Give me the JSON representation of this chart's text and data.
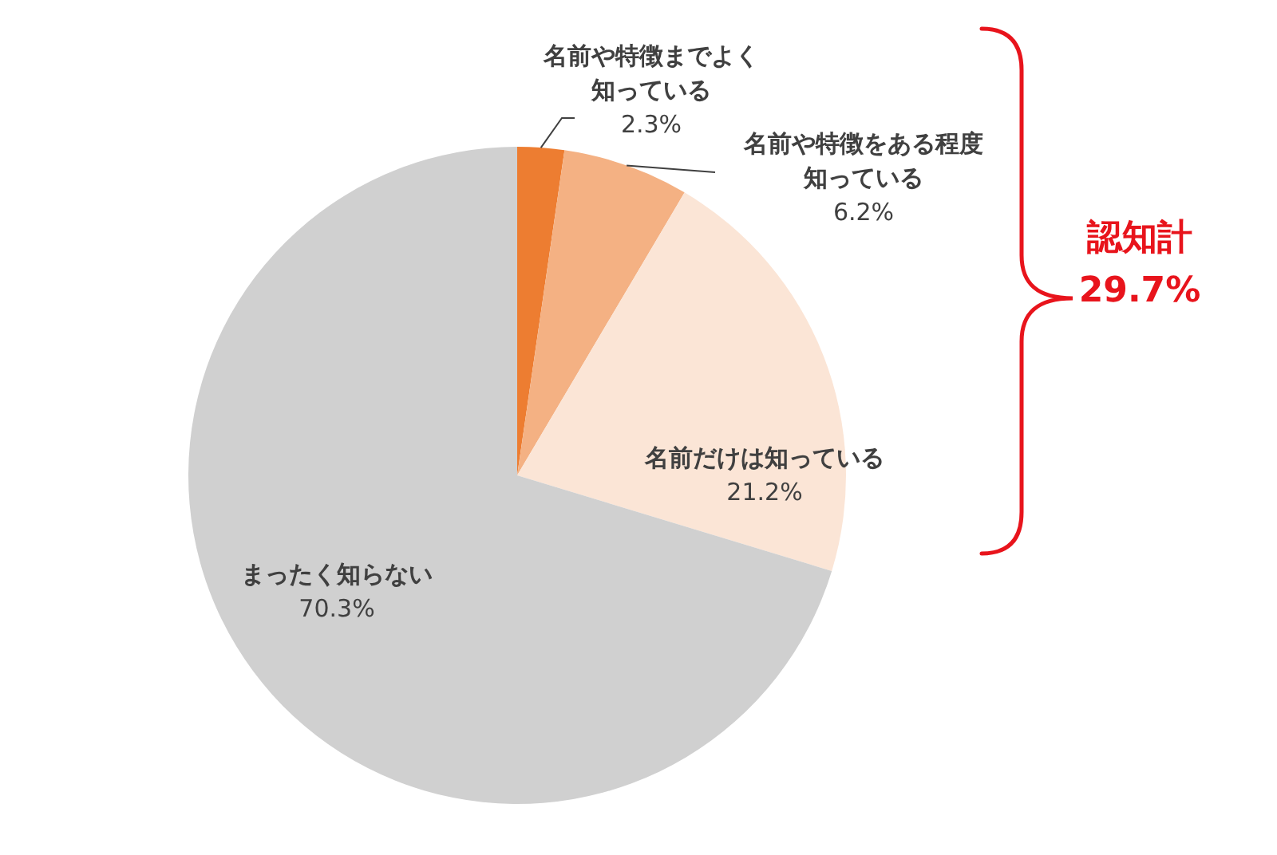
{
  "chart_data": {
    "type": "pie",
    "categories": [
      "名前や特徴までよく知っている",
      "名前や特徴をある程度知っている",
      "名前だけは知っている",
      "まったく知らない"
    ],
    "values": [
      2.3,
      6.2,
      21.2,
      70.3
    ],
    "colors": [
      "#ed7d31",
      "#f4b183",
      "#fbe5d6",
      "#d0d0d0"
    ],
    "value_labels": [
      "2.3%",
      "6.2%",
      "21.2%",
      "70.3%"
    ],
    "annotations": [
      "認知計\n29.7%"
    ]
  }
}
